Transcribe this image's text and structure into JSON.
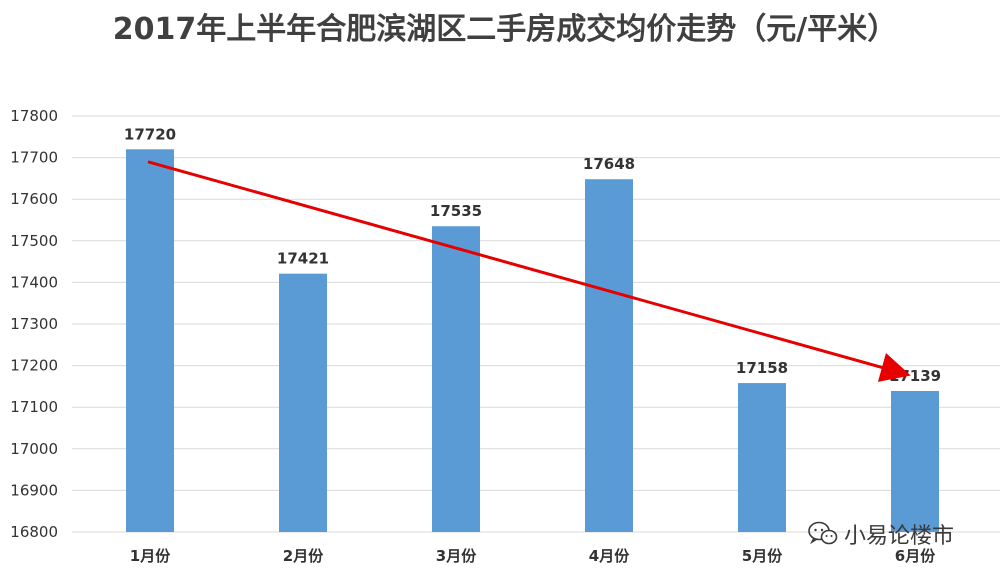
{
  "chart_data": {
    "type": "bar",
    "title": "2017年上半年合肥滨湖区二手房成交均价走势（元/平米）",
    "categories": [
      "1月份",
      "2月份",
      "3月份",
      "4月份",
      "5月份",
      "6月份"
    ],
    "values": [
      17720,
      17421,
      17535,
      17648,
      17158,
      17139
    ],
    "ylim": [
      16800,
      17800
    ],
    "yticks": [
      16800,
      16900,
      17000,
      17100,
      17200,
      17300,
      17400,
      17500,
      17600,
      17700,
      17800
    ],
    "grid": true,
    "legend": "none",
    "bar_color": "#5b9bd5",
    "trend_arrow": {
      "color": "#e60000",
      "from_value": 17690,
      "to_value": 17180
    }
  },
  "watermark": {
    "text": "小易论楼市",
    "icon": "wechat-icon"
  }
}
